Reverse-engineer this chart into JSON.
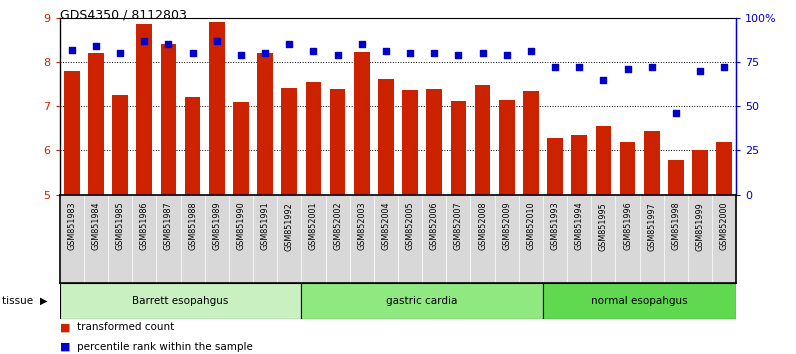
{
  "title": "GDS4350 / 8112803",
  "samples": [
    "GSM851983",
    "GSM851984",
    "GSM851985",
    "GSM851986",
    "GSM851987",
    "GSM851988",
    "GSM851989",
    "GSM851990",
    "GSM851991",
    "GSM851992",
    "GSM852001",
    "GSM852002",
    "GSM852003",
    "GSM852004",
    "GSM852005",
    "GSM852006",
    "GSM852007",
    "GSM852008",
    "GSM852009",
    "GSM852010",
    "GSM851993",
    "GSM851994",
    "GSM851995",
    "GSM851996",
    "GSM851997",
    "GSM851998",
    "GSM851999",
    "GSM852000"
  ],
  "bar_values": [
    7.8,
    8.2,
    7.25,
    8.85,
    8.4,
    7.2,
    8.9,
    7.1,
    8.2,
    7.4,
    7.55,
    7.38,
    8.23,
    7.62,
    7.36,
    7.38,
    7.12,
    7.48,
    7.15,
    7.35,
    6.28,
    6.35,
    6.55,
    6.2,
    6.45,
    5.78,
    6.02,
    6.2
  ],
  "percentile_values": [
    82,
    84,
    80,
    87,
    85,
    80,
    87,
    79,
    80,
    85,
    81,
    79,
    85,
    81,
    80,
    80,
    79,
    80,
    79,
    81,
    72,
    72,
    65,
    71,
    72,
    46,
    70,
    72
  ],
  "groups": [
    {
      "label": "Barrett esopahgus",
      "start": 0,
      "end": 10,
      "color": "#c8f0c0"
    },
    {
      "label": "gastric cardia",
      "start": 10,
      "end": 20,
      "color": "#90e880"
    },
    {
      "label": "normal esopahgus",
      "start": 20,
      "end": 28,
      "color": "#60d850"
    }
  ],
  "bar_color": "#cc2200",
  "dot_color": "#0000cc",
  "ylim_left": [
    5,
    9
  ],
  "ylim_right": [
    0,
    100
  ],
  "yticks_left": [
    5,
    6,
    7,
    8,
    9
  ],
  "yticks_right": [
    0,
    25,
    50,
    75,
    100
  ],
  "ytick_labels_right": [
    "0",
    "25",
    "50",
    "75",
    "100%"
  ],
  "grid_values": [
    6,
    7,
    8
  ],
  "background_color": "#ffffff",
  "xtick_bg": "#d8d8d8",
  "tissue_label": "tissue",
  "legend_bar_label": "transformed count",
  "legend_dot_label": "percentile rank within the sample"
}
